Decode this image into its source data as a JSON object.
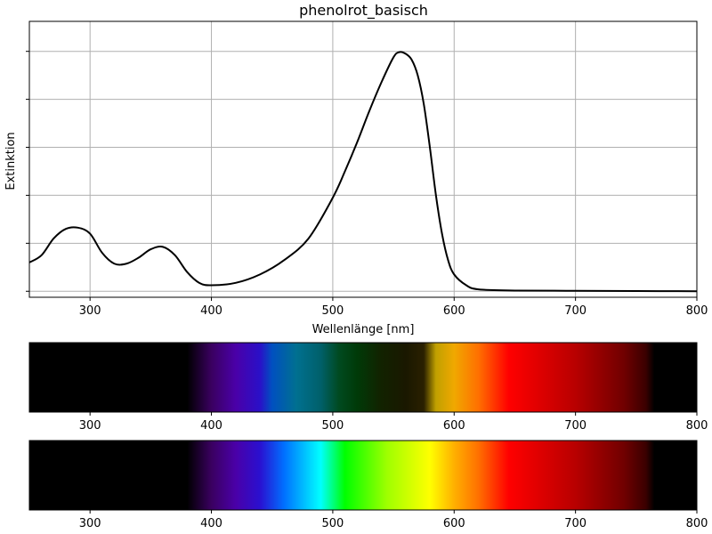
{
  "chart_data": {
    "type": "line",
    "title": "phenolrot_basisch",
    "xlabel": "Wellenlänge [nm]",
    "ylabel": "Extinktion",
    "xlim": [
      250,
      800
    ],
    "ylim": [
      -0.025,
      1.125
    ],
    "x_ticks": [
      300,
      400,
      500,
      600,
      700,
      800
    ],
    "y_ticks": [
      0,
      0.2,
      0.4,
      0.6,
      0.8,
      1.0
    ],
    "y_tick_labels_visible": false,
    "grid": true,
    "line_color": "#000000",
    "series": [
      {
        "x": [
          250,
          260,
          270,
          280,
          290,
          300,
          310,
          320,
          330,
          340,
          350,
          360,
          370,
          380,
          390,
          400,
          420,
          440,
          460,
          480,
          500,
          510,
          520,
          530,
          540,
          550,
          555,
          560,
          565,
          570,
          575,
          580,
          585,
          590,
          595,
          600,
          610,
          620,
          650,
          700,
          750,
          800
        ],
        "y": [
          0.12,
          0.15,
          0.22,
          0.26,
          0.265,
          0.24,
          0.16,
          0.115,
          0.115,
          0.14,
          0.175,
          0.185,
          0.15,
          0.08,
          0.035,
          0.025,
          0.035,
          0.07,
          0.13,
          0.22,
          0.39,
          0.5,
          0.62,
          0.75,
          0.87,
          0.975,
          0.997,
          0.99,
          0.965,
          0.9,
          0.78,
          0.6,
          0.4,
          0.24,
          0.13,
          0.07,
          0.025,
          0.008,
          0.003,
          0.002,
          0.001,
          0.0
        ]
      }
    ]
  },
  "spectrum_bars": [
    {
      "label": "absorbed-spectrum",
      "ticks": [
        300,
        400,
        500,
        600,
        700,
        800
      ],
      "stops": [
        {
          "nm": 250,
          "color": "#000000"
        },
        {
          "nm": 380,
          "color": "#000000"
        },
        {
          "nm": 400,
          "color": "#3a0060"
        },
        {
          "nm": 420,
          "color": "#4a00a8"
        },
        {
          "nm": 440,
          "color": "#2a10c8"
        },
        {
          "nm": 450,
          "color": "#0050c0"
        },
        {
          "nm": 470,
          "color": "#007090"
        },
        {
          "nm": 490,
          "color": "#00606a"
        },
        {
          "nm": 505,
          "color": "#004a20"
        },
        {
          "nm": 520,
          "color": "#003a08"
        },
        {
          "nm": 540,
          "color": "#122200"
        },
        {
          "nm": 560,
          "color": "#1a1800"
        },
        {
          "nm": 575,
          "color": "#2a2000"
        },
        {
          "nm": 585,
          "color": "#c0a000"
        },
        {
          "nm": 600,
          "color": "#f0a800"
        },
        {
          "nm": 620,
          "color": "#ff7000"
        },
        {
          "nm": 645,
          "color": "#ff0000"
        },
        {
          "nm": 700,
          "color": "#b80000"
        },
        {
          "nm": 740,
          "color": "#700000"
        },
        {
          "nm": 758,
          "color": "#3a0000"
        },
        {
          "nm": 765,
          "color": "#000000"
        },
        {
          "nm": 800,
          "color": "#000000"
        }
      ]
    },
    {
      "label": "full-visible-spectrum",
      "ticks": [
        300,
        400,
        500,
        600,
        700,
        800
      ],
      "stops": [
        {
          "nm": 250,
          "color": "#000000"
        },
        {
          "nm": 380,
          "color": "#000000"
        },
        {
          "nm": 400,
          "color": "#3a0060"
        },
        {
          "nm": 420,
          "color": "#4a00a8"
        },
        {
          "nm": 440,
          "color": "#2a10d0"
        },
        {
          "nm": 460,
          "color": "#0070ff"
        },
        {
          "nm": 490,
          "color": "#00ffff"
        },
        {
          "nm": 510,
          "color": "#00ff00"
        },
        {
          "nm": 545,
          "color": "#a0ff00"
        },
        {
          "nm": 580,
          "color": "#ffff00"
        },
        {
          "nm": 600,
          "color": "#ffb000"
        },
        {
          "nm": 620,
          "color": "#ff7000"
        },
        {
          "nm": 645,
          "color": "#ff0000"
        },
        {
          "nm": 700,
          "color": "#b80000"
        },
        {
          "nm": 740,
          "color": "#700000"
        },
        {
          "nm": 758,
          "color": "#3a0000"
        },
        {
          "nm": 765,
          "color": "#000000"
        },
        {
          "nm": 800,
          "color": "#000000"
        }
      ]
    }
  ]
}
